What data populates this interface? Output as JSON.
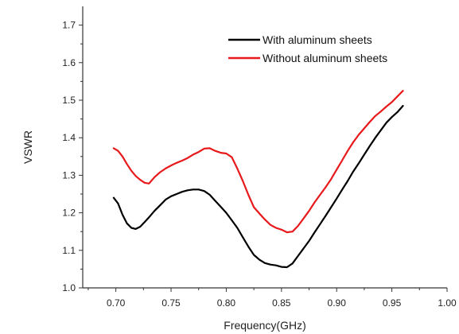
{
  "chart_data": {
    "type": "line",
    "title": "",
    "xlabel": "Frequency(GHz)",
    "ylabel": "VSWR",
    "xlim": [
      0.67,
      1.0
    ],
    "ylim": [
      1.0,
      1.75
    ],
    "xticks": [
      "0.70",
      "0.75",
      "0.80",
      "0.85",
      "0.90",
      "0.95",
      "1.00"
    ],
    "yticks": [
      "1.0",
      "1.1",
      "1.2",
      "1.3",
      "1.4",
      "1.5",
      "1.6",
      "1.7"
    ],
    "grid": false,
    "legend_position": "top-right",
    "series": [
      {
        "name": "With aluminum sheets",
        "color": "#000000",
        "x": [
          0.698,
          0.702,
          0.706,
          0.71,
          0.714,
          0.718,
          0.722,
          0.726,
          0.73,
          0.735,
          0.74,
          0.745,
          0.75,
          0.755,
          0.76,
          0.765,
          0.77,
          0.775,
          0.78,
          0.785,
          0.79,
          0.795,
          0.8,
          0.805,
          0.81,
          0.815,
          0.82,
          0.825,
          0.83,
          0.835,
          0.84,
          0.845,
          0.85,
          0.855,
          0.86,
          0.865,
          0.87,
          0.875,
          0.88,
          0.885,
          0.89,
          0.895,
          0.9,
          0.905,
          0.91,
          0.915,
          0.92,
          0.925,
          0.93,
          0.935,
          0.94,
          0.945,
          0.95,
          0.955,
          0.96
        ],
        "y": [
          1.24,
          1.225,
          1.195,
          1.172,
          1.16,
          1.157,
          1.163,
          1.175,
          1.188,
          1.205,
          1.22,
          1.235,
          1.244,
          1.25,
          1.256,
          1.26,
          1.262,
          1.262,
          1.258,
          1.248,
          1.232,
          1.216,
          1.2,
          1.18,
          1.16,
          1.135,
          1.11,
          1.088,
          1.075,
          1.066,
          1.062,
          1.06,
          1.056,
          1.055,
          1.065,
          1.085,
          1.105,
          1.125,
          1.148,
          1.17,
          1.192,
          1.215,
          1.238,
          1.262,
          1.285,
          1.31,
          1.332,
          1.355,
          1.378,
          1.4,
          1.42,
          1.44,
          1.455,
          1.468,
          1.485
        ]
      },
      {
        "name": "Without aluminum sheets",
        "color": "#e8191b",
        "x": [
          0.698,
          0.702,
          0.706,
          0.71,
          0.714,
          0.718,
          0.722,
          0.726,
          0.73,
          0.735,
          0.74,
          0.745,
          0.75,
          0.755,
          0.76,
          0.765,
          0.77,
          0.775,
          0.78,
          0.785,
          0.79,
          0.795,
          0.8,
          0.805,
          0.81,
          0.815,
          0.82,
          0.825,
          0.83,
          0.835,
          0.84,
          0.845,
          0.85,
          0.855,
          0.86,
          0.865,
          0.87,
          0.875,
          0.88,
          0.885,
          0.89,
          0.895,
          0.9,
          0.905,
          0.91,
          0.915,
          0.92,
          0.925,
          0.93,
          0.935,
          0.94,
          0.945,
          0.95,
          0.955,
          0.96
        ],
        "y": [
          1.372,
          1.365,
          1.35,
          1.33,
          1.312,
          1.298,
          1.288,
          1.28,
          1.278,
          1.295,
          1.308,
          1.318,
          1.326,
          1.333,
          1.339,
          1.346,
          1.355,
          1.362,
          1.371,
          1.372,
          1.365,
          1.36,
          1.358,
          1.348,
          1.318,
          1.285,
          1.248,
          1.215,
          1.198,
          1.182,
          1.168,
          1.16,
          1.155,
          1.148,
          1.15,
          1.165,
          1.185,
          1.205,
          1.228,
          1.248,
          1.268,
          1.29,
          1.315,
          1.34,
          1.365,
          1.388,
          1.408,
          1.425,
          1.442,
          1.458,
          1.47,
          1.483,
          1.495,
          1.51,
          1.525
        ]
      }
    ]
  }
}
